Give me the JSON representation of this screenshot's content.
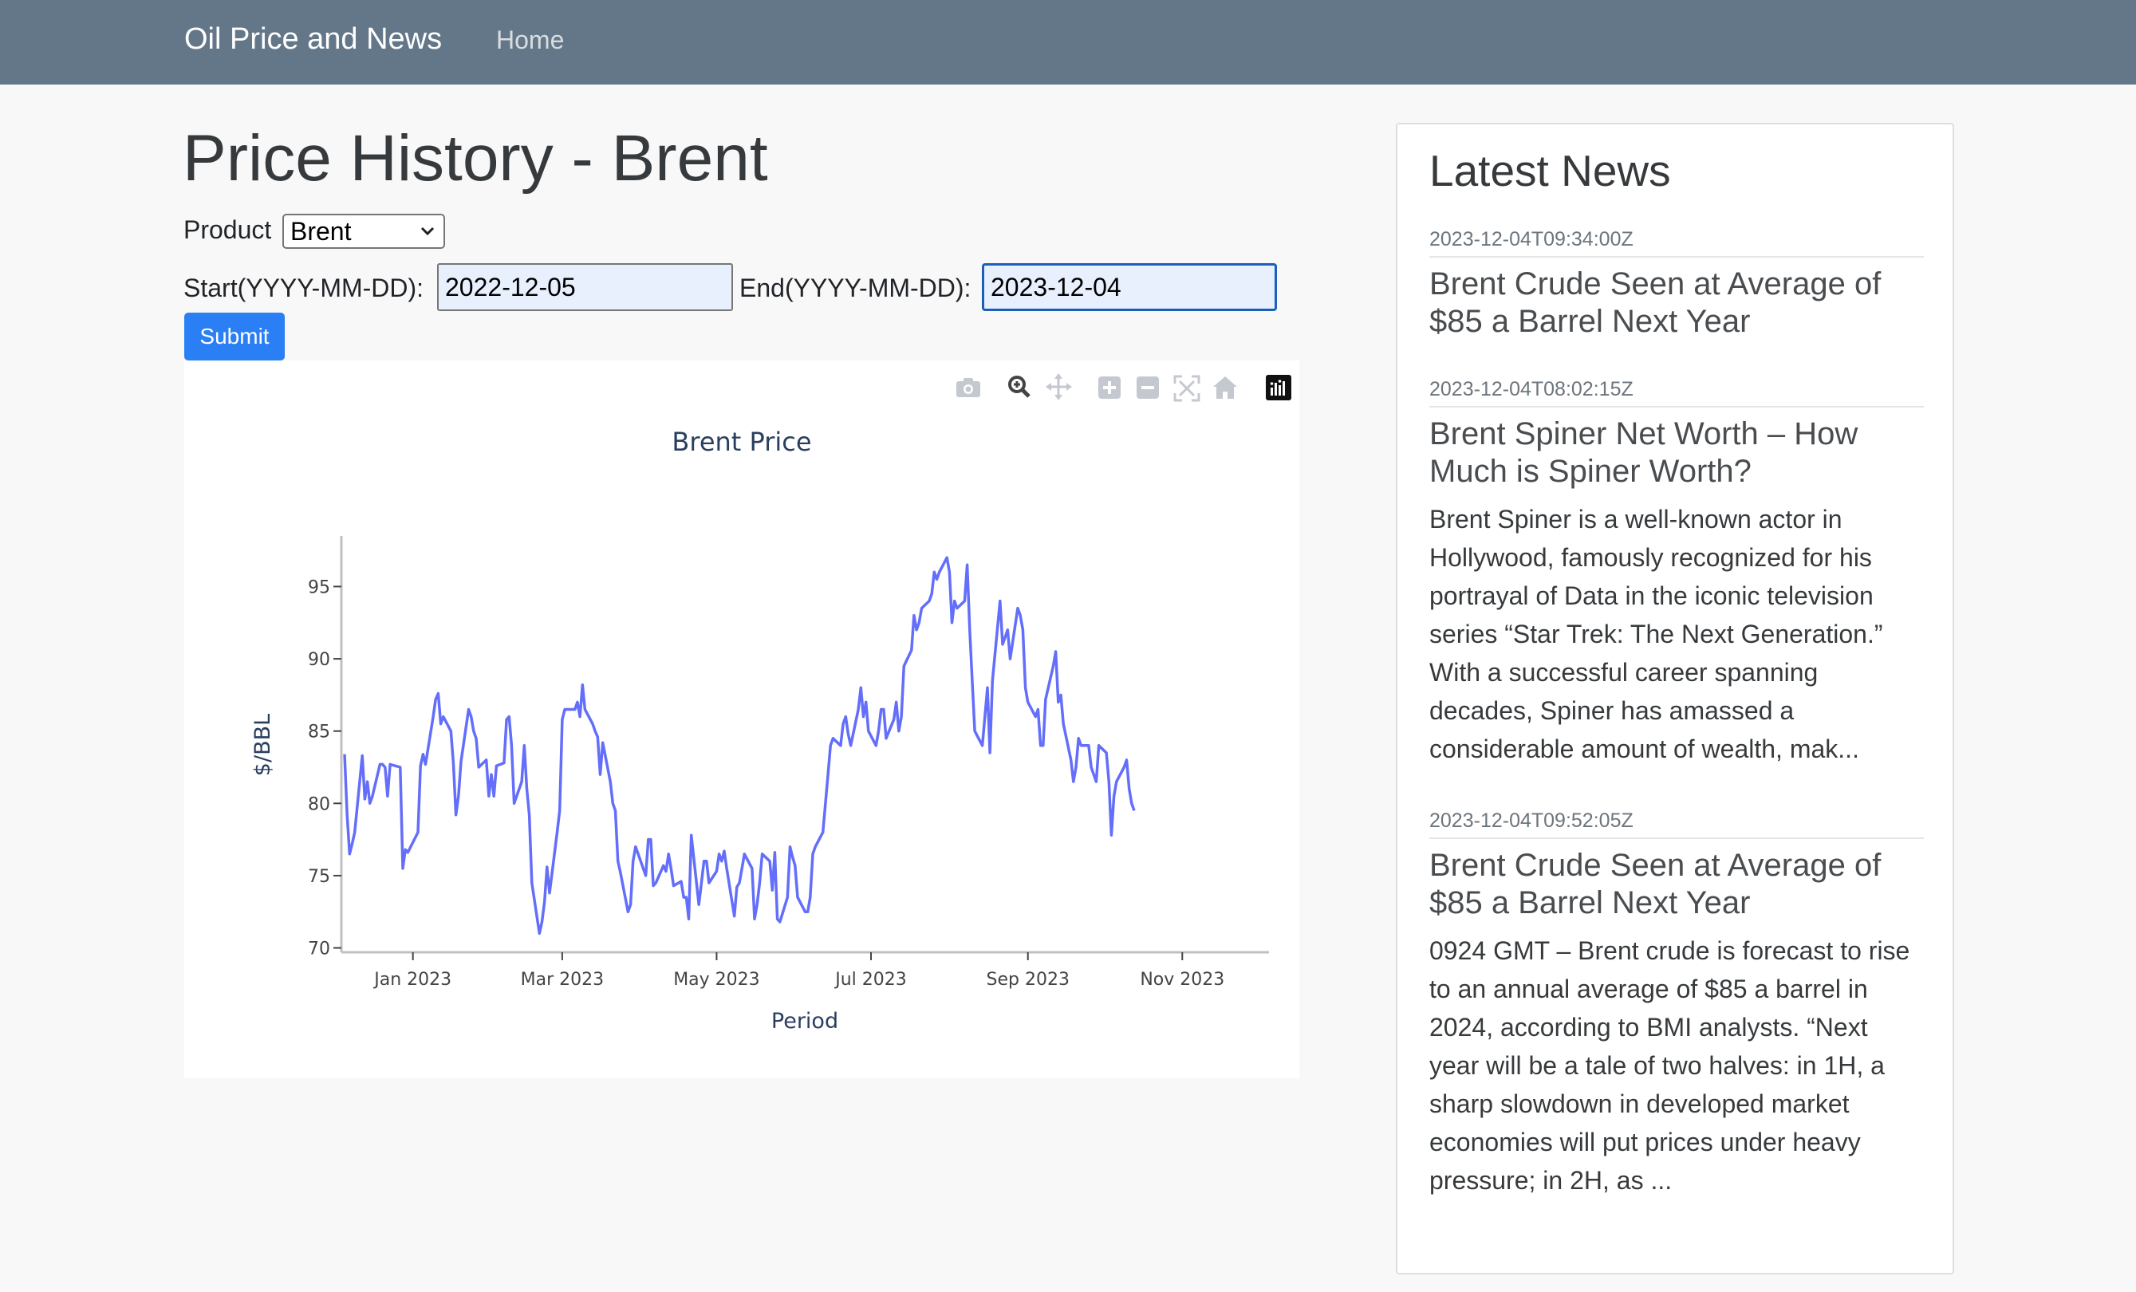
{
  "navbar": {
    "brand": "Oil Price and News",
    "home": "Home"
  },
  "main": {
    "title": "Price History - Brent",
    "product_label": "Product",
    "product_selected": "Brent",
    "start_label": "Start(YYYY-MM-DD):",
    "start_value": "2022-12-05",
    "end_label": "End(YYYY-MM-DD):",
    "end_value": "2023-12-04",
    "submit": "Submit"
  },
  "toolbar_icons": [
    "camera-icon",
    "zoom-icon",
    "pan-icon",
    "zoom-in-icon",
    "zoom-out-icon",
    "autoscale-icon",
    "reset-axes-icon",
    "plotly-logo-icon"
  ],
  "colors": {
    "navbar": "#647789",
    "submit": "#2a7ff4",
    "line": "#636efa"
  },
  "chart_data": {
    "type": "line",
    "title": "Brent Price",
    "xlabel": "Period",
    "ylabel": "$/BBL",
    "ylim": [
      69.7,
      98.5
    ],
    "x_range": [
      "2022-12-05",
      "2023-12-04"
    ],
    "yticks": [
      70,
      75,
      80,
      85,
      90,
      95
    ],
    "xticks": [
      {
        "label": "Jan 2023",
        "date": "2023-01-01"
      },
      {
        "label": "Mar 2023",
        "date": "2023-03-01"
      },
      {
        "label": "May 2023",
        "date": "2023-05-01"
      },
      {
        "label": "Jul 2023",
        "date": "2023-07-01"
      },
      {
        "label": "Sep 2023",
        "date": "2023-09-01"
      },
      {
        "label": "Nov 2023",
        "date": "2023-11-01"
      }
    ],
    "grid": false,
    "series": [
      {
        "points": [
          [
            "2022-12-05",
            83.4
          ],
          [
            "2022-12-06",
            79.2
          ],
          [
            "2022-12-07",
            76.5
          ],
          [
            "2022-12-08",
            77.2
          ],
          [
            "2022-12-09",
            78.0
          ],
          [
            "2022-12-12",
            83.3
          ],
          [
            "2022-12-13",
            80.3
          ],
          [
            "2022-12-14",
            81.5
          ],
          [
            "2022-12-15",
            80.0
          ],
          [
            "2022-12-16",
            80.5
          ],
          [
            "2022-12-19",
            82.7
          ],
          [
            "2022-12-20",
            82.7
          ],
          [
            "2022-12-21",
            82.5
          ],
          [
            "2022-12-22",
            80.5
          ],
          [
            "2022-12-23",
            82.7
          ],
          [
            "2022-12-27",
            82.5
          ],
          [
            "2022-12-28",
            75.5
          ],
          [
            "2022-12-29",
            76.8
          ],
          [
            "2022-12-30",
            76.6
          ],
          [
            "2023-01-03",
            78.0
          ],
          [
            "2023-01-04",
            82.6
          ],
          [
            "2023-01-05",
            83.4
          ],
          [
            "2023-01-06",
            82.7
          ],
          [
            "2023-01-09",
            86.0
          ],
          [
            "2023-01-10",
            87.2
          ],
          [
            "2023-01-11",
            87.6
          ],
          [
            "2023-01-12",
            85.5
          ],
          [
            "2023-01-13",
            86.0
          ],
          [
            "2023-01-16",
            85.0
          ],
          [
            "2023-01-17",
            82.8
          ],
          [
            "2023-01-18",
            79.2
          ],
          [
            "2023-01-19",
            80.5
          ],
          [
            "2023-01-20",
            82.9
          ],
          [
            "2023-01-23",
            86.5
          ],
          [
            "2023-01-24",
            86.0
          ],
          [
            "2023-01-25",
            85.0
          ],
          [
            "2023-01-26",
            84.5
          ],
          [
            "2023-01-27",
            82.5
          ],
          [
            "2023-01-30",
            83.0
          ],
          [
            "2023-01-31",
            80.5
          ],
          [
            "2023-02-01",
            82.0
          ],
          [
            "2023-02-02",
            80.5
          ],
          [
            "2023-02-03",
            82.6
          ],
          [
            "2023-02-06",
            82.8
          ],
          [
            "2023-02-07",
            85.8
          ],
          [
            "2023-02-08",
            86.0
          ],
          [
            "2023-02-09",
            84.0
          ],
          [
            "2023-02-10",
            80.0
          ],
          [
            "2023-02-13",
            81.5
          ],
          [
            "2023-02-14",
            84.0
          ],
          [
            "2023-02-15",
            81.0
          ],
          [
            "2023-02-16",
            79.2
          ],
          [
            "2023-02-17",
            74.5
          ],
          [
            "2023-02-20",
            71.0
          ],
          [
            "2023-02-21",
            71.8
          ],
          [
            "2023-02-22",
            73.2
          ],
          [
            "2023-02-23",
            75.6
          ],
          [
            "2023-02-24",
            73.8
          ],
          [
            "2023-02-27",
            78.0
          ],
          [
            "2023-02-28",
            79.5
          ],
          [
            "2023-03-01",
            85.8
          ],
          [
            "2023-03-02",
            86.5
          ],
          [
            "2023-03-03",
            86.5
          ],
          [
            "2023-03-06",
            86.5
          ],
          [
            "2023-03-07",
            87.0
          ],
          [
            "2023-03-08",
            86.0
          ],
          [
            "2023-03-09",
            88.2
          ],
          [
            "2023-03-10",
            86.5
          ],
          [
            "2023-03-13",
            85.5
          ],
          [
            "2023-03-14",
            85.0
          ],
          [
            "2023-03-15",
            84.6
          ],
          [
            "2023-03-16",
            82.0
          ],
          [
            "2023-03-17",
            84.2
          ],
          [
            "2023-03-20",
            81.5
          ],
          [
            "2023-03-21",
            80.0
          ],
          [
            "2023-03-22",
            79.5
          ],
          [
            "2023-03-23",
            76.0
          ],
          [
            "2023-03-24",
            75.2
          ],
          [
            "2023-03-27",
            72.5
          ],
          [
            "2023-03-28",
            73.0
          ],
          [
            "2023-03-29",
            76.0
          ],
          [
            "2023-03-30",
            77.0
          ],
          [
            "2023-03-31",
            76.5
          ],
          [
            "2023-04-03",
            75.0
          ],
          [
            "2023-04-04",
            77.5
          ],
          [
            "2023-04-05",
            77.5
          ],
          [
            "2023-04-06",
            74.3
          ],
          [
            "2023-04-07",
            74.5
          ],
          [
            "2023-04-10",
            75.7
          ],
          [
            "2023-04-11",
            75.3
          ],
          [
            "2023-04-12",
            76.5
          ],
          [
            "2023-04-13",
            75.5
          ],
          [
            "2023-04-14",
            74.3
          ],
          [
            "2023-04-17",
            74.6
          ],
          [
            "2023-04-18",
            73.5
          ],
          [
            "2023-04-19",
            73.5
          ],
          [
            "2023-04-20",
            72.0
          ],
          [
            "2023-04-21",
            77.8
          ],
          [
            "2023-04-24",
            73.0
          ],
          [
            "2023-04-25",
            74.5
          ],
          [
            "2023-04-26",
            76.0
          ],
          [
            "2023-04-27",
            76.0
          ],
          [
            "2023-04-28",
            74.5
          ],
          [
            "2023-05-01",
            75.3
          ],
          [
            "2023-05-02",
            76.5
          ],
          [
            "2023-05-03",
            76.0
          ],
          [
            "2023-05-04",
            76.7
          ],
          [
            "2023-05-05",
            75.5
          ],
          [
            "2023-05-08",
            72.2
          ],
          [
            "2023-05-09",
            74.2
          ],
          [
            "2023-05-10",
            74.5
          ],
          [
            "2023-05-11",
            75.5
          ],
          [
            "2023-05-12",
            76.5
          ],
          [
            "2023-05-15",
            75.5
          ],
          [
            "2023-05-16",
            72.0
          ],
          [
            "2023-05-17",
            73.0
          ],
          [
            "2023-05-18",
            74.5
          ],
          [
            "2023-05-19",
            76.5
          ],
          [
            "2023-05-22",
            76.0
          ],
          [
            "2023-05-23",
            74.0
          ],
          [
            "2023-05-24",
            76.6
          ],
          [
            "2023-05-25",
            72.0
          ],
          [
            "2023-05-26",
            71.8
          ],
          [
            "2023-05-29",
            73.5
          ],
          [
            "2023-05-30",
            77.0
          ],
          [
            "2023-05-31",
            76.3
          ],
          [
            "2023-06-01",
            75.7
          ],
          [
            "2023-06-02",
            73.5
          ],
          [
            "2023-06-05",
            72.5
          ],
          [
            "2023-06-06",
            72.5
          ],
          [
            "2023-06-07",
            73.5
          ],
          [
            "2023-06-08",
            76.5
          ],
          [
            "2023-06-09",
            77.0
          ],
          [
            "2023-06-12",
            78.0
          ],
          [
            "2023-06-13",
            80.0
          ],
          [
            "2023-06-14",
            82.0
          ],
          [
            "2023-06-15",
            84.0
          ],
          [
            "2023-06-16",
            84.5
          ],
          [
            "2023-06-19",
            84.0
          ],
          [
            "2023-06-20",
            85.5
          ],
          [
            "2023-06-21",
            86.0
          ],
          [
            "2023-06-22",
            84.8
          ],
          [
            "2023-06-23",
            84.0
          ],
          [
            "2023-06-26",
            86.5
          ],
          [
            "2023-06-27",
            88.0
          ],
          [
            "2023-06-28",
            86.0
          ],
          [
            "2023-06-29",
            87.0
          ],
          [
            "2023-06-30",
            85.0
          ],
          [
            "2023-07-03",
            84.0
          ],
          [
            "2023-07-04",
            85.0
          ],
          [
            "2023-07-05",
            86.5
          ],
          [
            "2023-07-06",
            86.5
          ],
          [
            "2023-07-07",
            84.5
          ],
          [
            "2023-07-10",
            85.8
          ],
          [
            "2023-07-11",
            87.0
          ],
          [
            "2023-07-12",
            85.0
          ],
          [
            "2023-07-13",
            86.0
          ],
          [
            "2023-07-14",
            89.5
          ],
          [
            "2023-07-17",
            90.6
          ],
          [
            "2023-07-18",
            93.0
          ],
          [
            "2023-07-19",
            92.0
          ],
          [
            "2023-07-20",
            92.5
          ],
          [
            "2023-07-21",
            93.5
          ],
          [
            "2023-07-24",
            94.0
          ],
          [
            "2023-07-25",
            94.5
          ],
          [
            "2023-07-26",
            96.0
          ],
          [
            "2023-07-27",
            95.5
          ],
          [
            "2023-07-28",
            96.0
          ],
          [
            "2023-07-31",
            97.0
          ],
          [
            "2023-08-01",
            96.0
          ],
          [
            "2023-08-02",
            92.5
          ],
          [
            "2023-08-03",
            94.0
          ],
          [
            "2023-08-04",
            93.5
          ],
          [
            "2023-08-07",
            94.0
          ],
          [
            "2023-08-08",
            96.5
          ],
          [
            "2023-08-09",
            92.0
          ],
          [
            "2023-08-10",
            88.5
          ],
          [
            "2023-08-11",
            85.0
          ],
          [
            "2023-08-14",
            84.0
          ],
          [
            "2023-08-15",
            86.0
          ],
          [
            "2023-08-16",
            88.0
          ],
          [
            "2023-08-17",
            83.5
          ],
          [
            "2023-08-18",
            88.5
          ],
          [
            "2023-08-21",
            94.0
          ],
          [
            "2023-08-22",
            91.0
          ],
          [
            "2023-08-23",
            91.5
          ],
          [
            "2023-08-24",
            92.0
          ],
          [
            "2023-08-25",
            90.0
          ],
          [
            "2023-08-28",
            93.5
          ],
          [
            "2023-08-29",
            93.0
          ],
          [
            "2023-08-30",
            92.0
          ],
          [
            "2023-08-31",
            88.0
          ],
          [
            "2023-09-01",
            87.0
          ],
          [
            "2023-09-04",
            86.0
          ],
          [
            "2023-09-05",
            86.5
          ],
          [
            "2023-09-06",
            84.0
          ],
          [
            "2023-09-07",
            84.0
          ],
          [
            "2023-09-08",
            87.2
          ],
          [
            "2023-09-11",
            89.5
          ],
          [
            "2023-09-12",
            90.5
          ],
          [
            "2023-09-13",
            87.0
          ],
          [
            "2023-09-14",
            87.5
          ],
          [
            "2023-09-15",
            85.5
          ],
          [
            "2023-09-18",
            83.0
          ],
          [
            "2023-09-19",
            81.5
          ],
          [
            "2023-09-20",
            82.5
          ],
          [
            "2023-09-21",
            84.5
          ],
          [
            "2023-09-22",
            84.0
          ],
          [
            "2023-09-25",
            84.0
          ],
          [
            "2023-09-26",
            82.5
          ],
          [
            "2023-09-27",
            82.0
          ],
          [
            "2023-09-28",
            81.5
          ],
          [
            "2023-09-29",
            84.0
          ],
          [
            "2023-10-02",
            83.5
          ],
          [
            "2023-10-03",
            81.5
          ],
          [
            "2023-10-04",
            77.8
          ],
          [
            "2023-10-05",
            80.5
          ],
          [
            "2023-10-06",
            81.5
          ],
          [
            "2023-10-09",
            82.5
          ],
          [
            "2023-10-10",
            83.0
          ],
          [
            "2023-10-11",
            81.0
          ],
          [
            "2023-10-12",
            80.0
          ],
          [
            "2023-10-13",
            79.5
          ]
        ]
      }
    ]
  },
  "news": {
    "title": "Latest News",
    "items": [
      {
        "timestamp": "2023-12-04T09:34:00Z",
        "headline": "Brent Crude Seen at Average of $85 a Barrel Next Year",
        "body": ""
      },
      {
        "timestamp": "2023-12-04T08:02:15Z",
        "headline": "Brent Spiner Net Worth – How Much is Spiner Worth?",
        "body": "Brent Spiner is a well-known actor in Hollywood, famously recognized for his portrayal of Data in the iconic television series “Star Trek: The Next Generation.” With a successful career spanning decades, Spiner has amassed a considerable amount of wealth, mak..."
      },
      {
        "timestamp": "2023-12-04T09:52:05Z",
        "headline": "Brent Crude Seen at Average of $85 a Barrel Next Year",
        "body": "0924 GMT – Brent crude is forecast to rise to an annual average of $85 a barrel in 2024, according to BMI analysts. “Next year will be a tale of two halves: in 1H, a sharp slowdown in developed market economies will put prices under heavy pressure; in 2H, as ..."
      }
    ]
  }
}
